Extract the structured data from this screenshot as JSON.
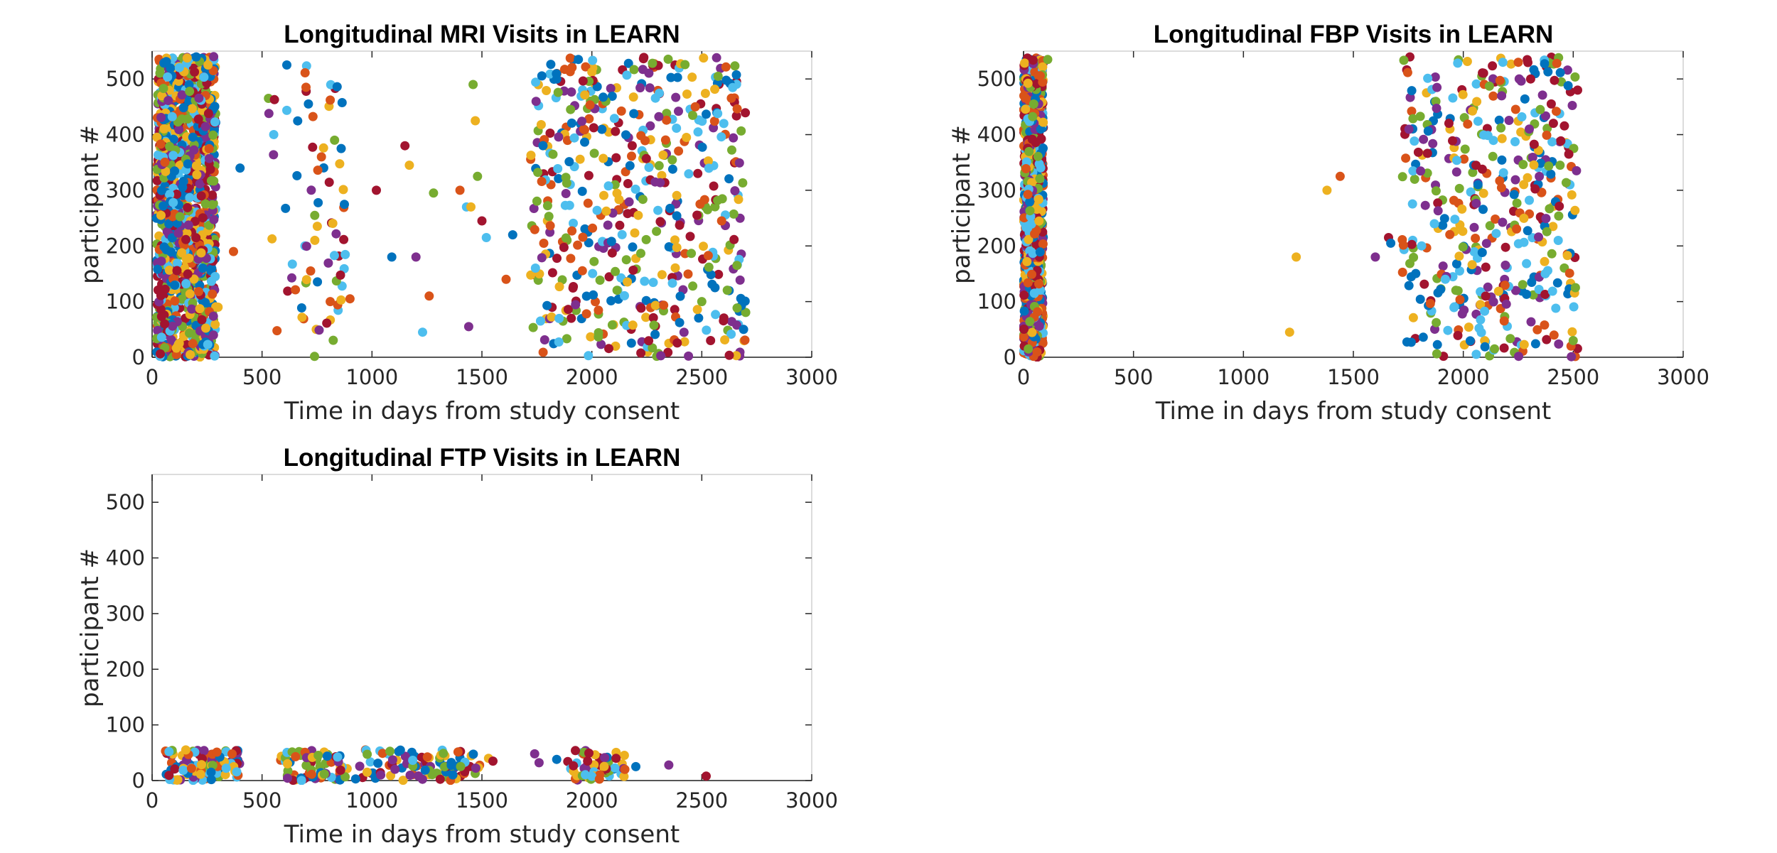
{
  "palette": [
    "#0072BD",
    "#D95319",
    "#EDB120",
    "#7E2F8E",
    "#77AC30",
    "#4DBEEE",
    "#A2142F"
  ],
  "chart_data": [
    {
      "type": "scatter",
      "title": "Longitudinal MRI Visits in LEARN",
      "xlabel": "Time in days from study consent",
      "ylabel": "participant #",
      "xlim": [
        0,
        3000
      ],
      "ylim": [
        0,
        550
      ],
      "xticks": [
        0,
        500,
        1000,
        1500,
        2000,
        2500,
        3000
      ],
      "yticks": [
        0,
        100,
        200,
        300,
        400,
        500
      ],
      "grid": false,
      "legend": "none",
      "clusters": [
        {
          "x_range": [
            20,
            290
          ],
          "y_range": [
            0,
            540
          ],
          "count": 1200
        },
        {
          "x_range": [
            520,
            880
          ],
          "y_range": [
            0,
            540
          ],
          "count": 70
        },
        {
          "x_range": [
            1720,
            2700
          ],
          "y_range": [
            0,
            540
          ],
          "count": 500
        }
      ],
      "points": [
        [
          400,
          340
        ],
        [
          370,
          190
        ],
        [
          280,
          540
        ],
        [
          300,
          90
        ],
        [
          810,
          100
        ],
        [
          900,
          105
        ],
        [
          1020,
          300
        ],
        [
          1090,
          180
        ],
        [
          1150,
          380
        ],
        [
          1170,
          345
        ],
        [
          1200,
          180
        ],
        [
          1230,
          45
        ],
        [
          1260,
          110
        ],
        [
          1280,
          295
        ],
        [
          1400,
          300
        ],
        [
          1430,
          270
        ],
        [
          1440,
          55
        ],
        [
          1450,
          270
        ],
        [
          1460,
          490
        ],
        [
          1470,
          425
        ],
        [
          1480,
          325
        ],
        [
          1500,
          245
        ],
        [
          1520,
          215
        ],
        [
          1610,
          140
        ],
        [
          1640,
          220
        ],
        [
          860,
          375
        ],
        [
          830,
          390
        ],
        [
          770,
          360
        ],
        [
          740,
          210
        ],
        [
          700,
          485
        ],
        [
          2560,
          125
        ],
        [
          2590,
          245
        ],
        [
          2660,
          165
        ],
        [
          2690,
          50
        ],
        [
          2600,
          420
        ],
        [
          2470,
          450
        ],
        [
          2500,
          100
        ],
        [
          2540,
          30
        ],
        [
          2430,
          395
        ]
      ]
    },
    {
      "type": "scatter",
      "title": "Longitudinal FBP Visits in LEARN",
      "xlabel": "Time in days from study consent",
      "ylabel": "participant #",
      "xlim": [
        0,
        3000
      ],
      "ylim": [
        0,
        550
      ],
      "xticks": [
        0,
        500,
        1000,
        1500,
        2000,
        2500,
        3000
      ],
      "yticks": [
        0,
        100,
        200,
        300,
        400,
        500
      ],
      "grid": false,
      "legend": "none",
      "clusters": [
        {
          "x_range": [
            0,
            90
          ],
          "y_range": [
            0,
            540
          ],
          "count": 900
        },
        {
          "x_range": [
            1720,
            2520
          ],
          "y_range": [
            0,
            540
          ],
          "count": 420
        }
      ],
      "points": [
        [
          1210,
          45
        ],
        [
          1240,
          180
        ],
        [
          1380,
          300
        ],
        [
          1440,
          325
        ],
        [
          1600,
          180
        ],
        [
          1660,
          215
        ],
        [
          1670,
          205
        ],
        [
          2510,
          125
        ],
        [
          2490,
          20
        ],
        [
          2500,
          30
        ],
        [
          2480,
          365
        ],
        [
          2440,
          345
        ],
        [
          2400,
          455
        ],
        [
          2350,
          445
        ],
        [
          2300,
          410
        ],
        [
          2250,
          530
        ],
        [
          2180,
          530
        ],
        [
          110,
          535
        ]
      ]
    },
    {
      "type": "scatter",
      "title": "Longitudinal FTP Visits in LEARN",
      "xlabel": "Time in days from study consent",
      "ylabel": "participant #",
      "xlim": [
        0,
        3000
      ],
      "ylim": [
        0,
        550
      ],
      "xticks": [
        0,
        500,
        1000,
        1500,
        2000,
        2500,
        3000
      ],
      "yticks": [
        0,
        100,
        200,
        300,
        400,
        500
      ],
      "grid": false,
      "legend": "none",
      "clusters": [
        {
          "x_range": [
            60,
            420
          ],
          "y_range": [
            0,
            55
          ],
          "count": 110
        },
        {
          "x_range": [
            580,
            900
          ],
          "y_range": [
            0,
            55
          ],
          "count": 70
        },
        {
          "x_range": [
            900,
            1500
          ],
          "y_range": [
            0,
            55
          ],
          "count": 90
        },
        {
          "x_range": [
            1880,
            2150
          ],
          "y_range": [
            0,
            55
          ],
          "count": 55
        }
      ],
      "points": [
        [
          1740,
          48
        ],
        [
          1760,
          32
        ],
        [
          1840,
          38
        ],
        [
          2200,
          25
        ],
        [
          2350,
          28
        ],
        [
          2520,
          8
        ],
        [
          1530,
          40
        ],
        [
          1550,
          35
        ],
        [
          2110,
          40
        ],
        [
          2150,
          20
        ]
      ]
    }
  ]
}
